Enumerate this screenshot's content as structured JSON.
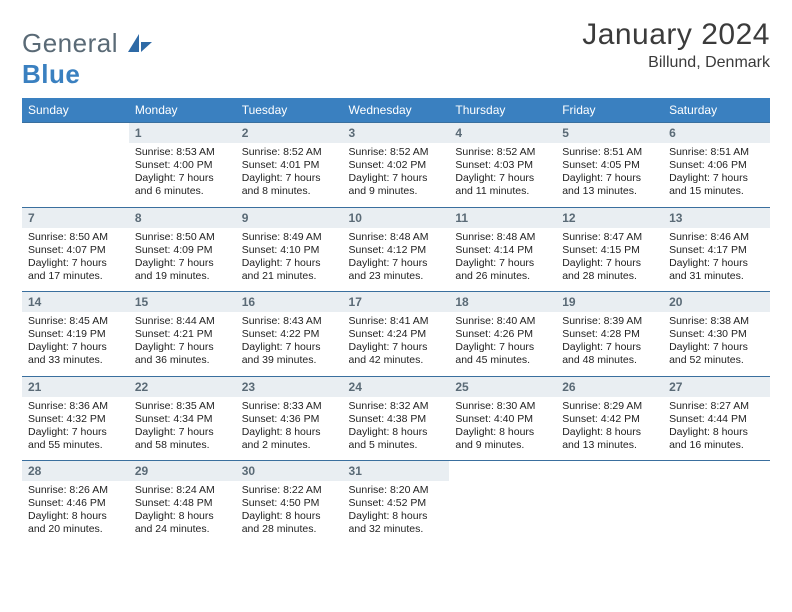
{
  "brand": {
    "part1": "General",
    "part2": "Blue"
  },
  "title": "January 2024",
  "location": "Billund, Denmark",
  "colors": {
    "header_bg": "#3a80c0",
    "header_text": "#ffffff",
    "cell_divider": "#3a6f9e",
    "daynum_bg": "#e9eef2",
    "daynum_text": "#5a6a76",
    "body_text": "#222222",
    "logo_gray": "#5a6a76",
    "logo_blue": "#3a80c0"
  },
  "weekdays": [
    "Sunday",
    "Monday",
    "Tuesday",
    "Wednesday",
    "Thursday",
    "Friday",
    "Saturday"
  ],
  "weeks": [
    [
      null,
      {
        "n": "1",
        "sunrise": "8:53 AM",
        "sunset": "4:00 PM",
        "daylight": "7 hours and 6 minutes."
      },
      {
        "n": "2",
        "sunrise": "8:52 AM",
        "sunset": "4:01 PM",
        "daylight": "7 hours and 8 minutes."
      },
      {
        "n": "3",
        "sunrise": "8:52 AM",
        "sunset": "4:02 PM",
        "daylight": "7 hours and 9 minutes."
      },
      {
        "n": "4",
        "sunrise": "8:52 AM",
        "sunset": "4:03 PM",
        "daylight": "7 hours and 11 minutes."
      },
      {
        "n": "5",
        "sunrise": "8:51 AM",
        "sunset": "4:05 PM",
        "daylight": "7 hours and 13 minutes."
      },
      {
        "n": "6",
        "sunrise": "8:51 AM",
        "sunset": "4:06 PM",
        "daylight": "7 hours and 15 minutes."
      }
    ],
    [
      {
        "n": "7",
        "sunrise": "8:50 AM",
        "sunset": "4:07 PM",
        "daylight": "7 hours and 17 minutes."
      },
      {
        "n": "8",
        "sunrise": "8:50 AM",
        "sunset": "4:09 PM",
        "daylight": "7 hours and 19 minutes."
      },
      {
        "n": "9",
        "sunrise": "8:49 AM",
        "sunset": "4:10 PM",
        "daylight": "7 hours and 21 minutes."
      },
      {
        "n": "10",
        "sunrise": "8:48 AM",
        "sunset": "4:12 PM",
        "daylight": "7 hours and 23 minutes."
      },
      {
        "n": "11",
        "sunrise": "8:48 AM",
        "sunset": "4:14 PM",
        "daylight": "7 hours and 26 minutes."
      },
      {
        "n": "12",
        "sunrise": "8:47 AM",
        "sunset": "4:15 PM",
        "daylight": "7 hours and 28 minutes."
      },
      {
        "n": "13",
        "sunrise": "8:46 AM",
        "sunset": "4:17 PM",
        "daylight": "7 hours and 31 minutes."
      }
    ],
    [
      {
        "n": "14",
        "sunrise": "8:45 AM",
        "sunset": "4:19 PM",
        "daylight": "7 hours and 33 minutes."
      },
      {
        "n": "15",
        "sunrise": "8:44 AM",
        "sunset": "4:21 PM",
        "daylight": "7 hours and 36 minutes."
      },
      {
        "n": "16",
        "sunrise": "8:43 AM",
        "sunset": "4:22 PM",
        "daylight": "7 hours and 39 minutes."
      },
      {
        "n": "17",
        "sunrise": "8:41 AM",
        "sunset": "4:24 PM",
        "daylight": "7 hours and 42 minutes."
      },
      {
        "n": "18",
        "sunrise": "8:40 AM",
        "sunset": "4:26 PM",
        "daylight": "7 hours and 45 minutes."
      },
      {
        "n": "19",
        "sunrise": "8:39 AM",
        "sunset": "4:28 PM",
        "daylight": "7 hours and 48 minutes."
      },
      {
        "n": "20",
        "sunrise": "8:38 AM",
        "sunset": "4:30 PM",
        "daylight": "7 hours and 52 minutes."
      }
    ],
    [
      {
        "n": "21",
        "sunrise": "8:36 AM",
        "sunset": "4:32 PM",
        "daylight": "7 hours and 55 minutes."
      },
      {
        "n": "22",
        "sunrise": "8:35 AM",
        "sunset": "4:34 PM",
        "daylight": "7 hours and 58 minutes."
      },
      {
        "n": "23",
        "sunrise": "8:33 AM",
        "sunset": "4:36 PM",
        "daylight": "8 hours and 2 minutes."
      },
      {
        "n": "24",
        "sunrise": "8:32 AM",
        "sunset": "4:38 PM",
        "daylight": "8 hours and 5 minutes."
      },
      {
        "n": "25",
        "sunrise": "8:30 AM",
        "sunset": "4:40 PM",
        "daylight": "8 hours and 9 minutes."
      },
      {
        "n": "26",
        "sunrise": "8:29 AM",
        "sunset": "4:42 PM",
        "daylight": "8 hours and 13 minutes."
      },
      {
        "n": "27",
        "sunrise": "8:27 AM",
        "sunset": "4:44 PM",
        "daylight": "8 hours and 16 minutes."
      }
    ],
    [
      {
        "n": "28",
        "sunrise": "8:26 AM",
        "sunset": "4:46 PM",
        "daylight": "8 hours and 20 minutes."
      },
      {
        "n": "29",
        "sunrise": "8:24 AM",
        "sunset": "4:48 PM",
        "daylight": "8 hours and 24 minutes."
      },
      {
        "n": "30",
        "sunrise": "8:22 AM",
        "sunset": "4:50 PM",
        "daylight": "8 hours and 28 minutes."
      },
      {
        "n": "31",
        "sunrise": "8:20 AM",
        "sunset": "4:52 PM",
        "daylight": "8 hours and 32 minutes."
      },
      null,
      null,
      null
    ]
  ],
  "labels": {
    "sunrise": "Sunrise: ",
    "sunset": "Sunset: ",
    "daylight": "Daylight: "
  }
}
